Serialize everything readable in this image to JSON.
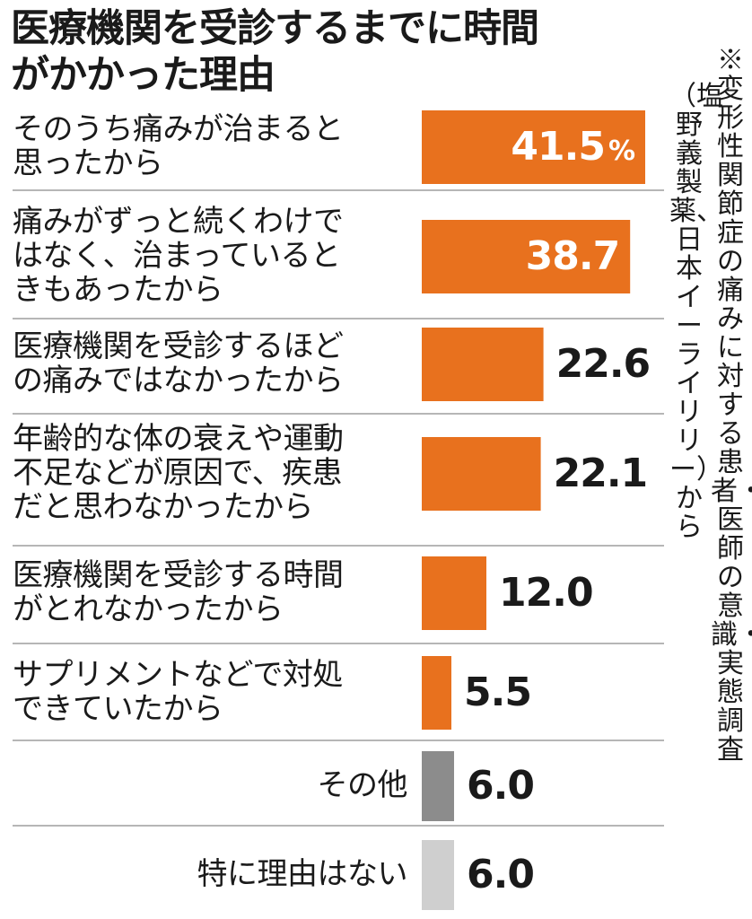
{
  "header": {
    "title_lines": [
      "医療機関を受診するまでに時間",
      "がかかった理由"
    ]
  },
  "source_note": {
    "column1": "※変形性関節症の痛みに対する患者・医師の意識・実態調査",
    "column2": "（塩野義製薬、日本イーライリリー）から"
  },
  "colors": {
    "bar": "#e8711e",
    "other": "#8c8c8c",
    "none": "#cfcfcf",
    "separator": "#8a8a8a"
  },
  "chart_data": {
    "type": "bar",
    "orientation": "horizontal",
    "title": "医療機関を受診するまでに時間がかかった理由",
    "unit": "%",
    "categories": [
      [
        "そのうち痛みが治まると",
        "思ったから"
      ],
      [
        "痛みがずっと続くわけで",
        "はなく、治まっていると",
        "きもあったから"
      ],
      [
        "医療機関を受診するほど",
        "の痛みではなかったから"
      ],
      [
        "年齢的な体の衰えや運動",
        "不足などが原因で、疾患",
        "だと思わなかったから"
      ],
      [
        "医療機関を受診する時間",
        "がとれなかったから"
      ],
      [
        "サプリメントなどで対処",
        "できていたから"
      ],
      [
        "その他"
      ],
      [
        "特に理由はない"
      ]
    ],
    "values": [
      41.5,
      38.7,
      22.6,
      22.1,
      12.0,
      5.5,
      6.0,
      6.0
    ],
    "value_labels": [
      "41.5",
      "38.7",
      "22.6",
      "22.1",
      "12.0",
      "5.5",
      "6.0",
      "6.0"
    ],
    "bar_colors": [
      "bar",
      "bar",
      "bar",
      "bar",
      "bar",
      "bar",
      "other",
      "none"
    ],
    "label_align": [
      "left",
      "left",
      "left",
      "left",
      "left",
      "left",
      "right",
      "right"
    ],
    "grid": false,
    "legend": "none"
  }
}
